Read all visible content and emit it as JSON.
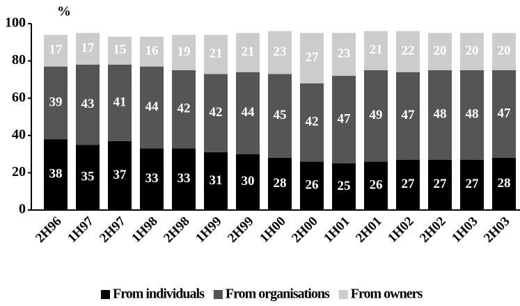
{
  "chart_data": {
    "type": "stacked_bar",
    "y_label": "%",
    "categories": [
      "2H96",
      "1H97",
      "2H97",
      "1H98",
      "2H98",
      "1H99",
      "2H99",
      "1H00",
      "2H00",
      "1H01",
      "2H01",
      "1H02",
      "2H02",
      "1H03",
      "2H03"
    ],
    "series": [
      {
        "name": "From individuals",
        "color": "#000000",
        "values": [
          38,
          35,
          37,
          33,
          33,
          31,
          30,
          28,
          26,
          25,
          26,
          27,
          27,
          27,
          28
        ]
      },
      {
        "name": "From organisations",
        "color": "#555555",
        "values": [
          39,
          43,
          41,
          44,
          42,
          42,
          44,
          45,
          42,
          47,
          49,
          47,
          48,
          48,
          47
        ]
      },
      {
        "name": "From owners",
        "color": "#cccccc",
        "values": [
          17,
          17,
          15,
          16,
          19,
          21,
          21,
          23,
          27,
          23,
          21,
          22,
          20,
          20,
          20
        ]
      }
    ],
    "ylim": [
      0,
      100
    ],
    "yticks": [
      0,
      20,
      40,
      60,
      80,
      100
    ],
    "legend": "bottom"
  }
}
